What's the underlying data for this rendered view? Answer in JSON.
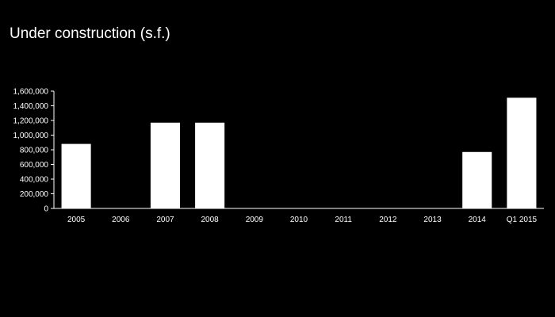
{
  "colors": {
    "background": "#000000",
    "bar": "#ffffff",
    "axis": "#ffffff",
    "text": "#ffffff"
  },
  "chart_data": {
    "type": "bar",
    "title": "Under construction (s.f.)",
    "xlabel": "",
    "ylabel": "",
    "categories": [
      "2005",
      "2006",
      "2007",
      "2008",
      "2009",
      "2010",
      "2011",
      "2012",
      "2013",
      "2014",
      "Q1 2015"
    ],
    "values": [
      880000,
      0,
      1170000,
      1170000,
      0,
      0,
      0,
      0,
      0,
      770000,
      1510000
    ],
    "ylim": [
      0,
      1600000
    ],
    "yticks": [
      0,
      200000,
      400000,
      600000,
      800000,
      1000000,
      1200000,
      1400000,
      1600000
    ],
    "ytick_labels": [
      "0",
      "200,000",
      "400,000",
      "600,000",
      "800,000",
      "1,000,000",
      "1,200,000",
      "1,400,000",
      "1,600,000"
    ],
    "grid": false,
    "legend": "none"
  }
}
